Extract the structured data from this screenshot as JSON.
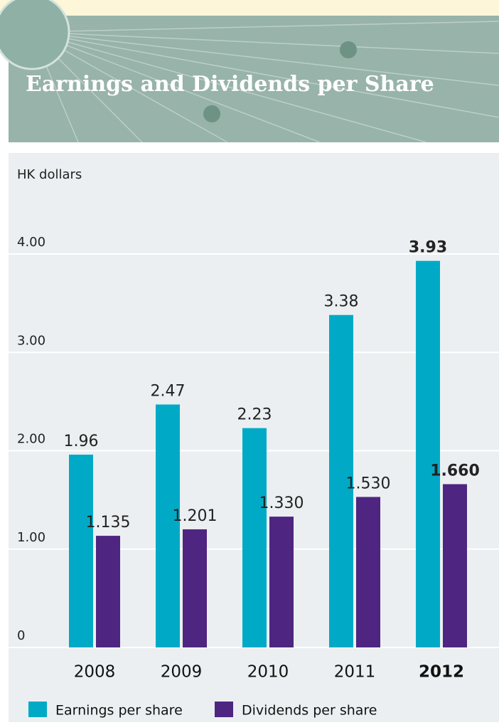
{
  "chart_data": {
    "type": "bar",
    "title": "Earnings and Dividends per Share",
    "y_axis_label": "HK dollars",
    "categories": [
      "2008",
      "2009",
      "2010",
      "2011",
      "2012"
    ],
    "series": [
      {
        "name": "Earnings per share",
        "color": "#00aac6",
        "values": [
          1.96,
          2.47,
          2.23,
          3.38,
          3.93
        ],
        "value_labels": [
          "1.96",
          "2.47",
          "2.23",
          "3.38",
          "3.93"
        ]
      },
      {
        "name": "Dividends per share",
        "color": "#4e2580",
        "values": [
          1.135,
          1.201,
          1.33,
          1.53,
          1.66
        ],
        "value_labels": [
          "1.135",
          "1.201",
          "1.330",
          "1.530",
          "1.660"
        ]
      }
    ],
    "ylim": [
      0,
      4
    ],
    "yticks": [
      0,
      {
        "value": 1,
        "label": "1.00"
      },
      {
        "value": 2,
        "label": "2.00"
      },
      {
        "value": 3,
        "label": "3.00"
      },
      {
        "value": 4,
        "label": "4.00"
      }
    ],
    "grid": true
  }
}
